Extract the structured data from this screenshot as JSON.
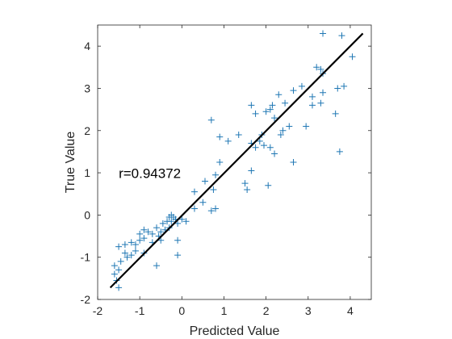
{
  "chart_data": {
    "type": "scatter",
    "xlabel": "Predicted Value",
    "ylabel": "True Value",
    "xlim": [
      -2,
      4.5
    ],
    "ylim": [
      -2,
      4.5
    ],
    "xticks": [
      -2,
      -1,
      0,
      1,
      2,
      3,
      4
    ],
    "yticks": [
      -2,
      -1,
      0,
      1,
      2,
      3,
      4
    ],
    "grid": false,
    "annotation": {
      "text": "r=0.94372",
      "x": -1.5,
      "y": 0.88
    },
    "marker_color": "#1f77b4",
    "line_color": "#000000",
    "fit_line": {
      "x": [
        -1.7,
        4.3
      ],
      "y": [
        -1.72,
        4.3
      ]
    },
    "points": [
      [
        -1.5,
        -1.72
      ],
      [
        -1.55,
        -1.55
      ],
      [
        -1.6,
        -1.4
      ],
      [
        -1.5,
        -1.3
      ],
      [
        -1.6,
        -1.2
      ],
      [
        -1.45,
        -1.1
      ],
      [
        -1.3,
        -1.0
      ],
      [
        -1.2,
        -0.95
      ],
      [
        -1.35,
        -0.9
      ],
      [
        -1.1,
        -0.85
      ],
      [
        -1.5,
        -0.75
      ],
      [
        -1.35,
        -0.7
      ],
      [
        -1.2,
        -0.65
      ],
      [
        -1.1,
        -0.7
      ],
      [
        -1.0,
        -0.6
      ],
      [
        -0.9,
        -0.55
      ],
      [
        -1.0,
        -0.45
      ],
      [
        -0.8,
        -0.4
      ],
      [
        -0.9,
        -0.35
      ],
      [
        -0.7,
        -0.45
      ],
      [
        -0.6,
        -0.3
      ],
      [
        -0.5,
        -0.4
      ],
      [
        -0.4,
        -0.35
      ],
      [
        -0.45,
        -0.2
      ],
      [
        -0.35,
        -0.15
      ],
      [
        -0.3,
        -0.05
      ],
      [
        -0.25,
        0.0
      ],
      [
        -0.2,
        -0.05
      ],
      [
        -0.15,
        -0.1
      ],
      [
        -0.1,
        -0.2
      ],
      [
        0.0,
        -0.1
      ],
      [
        -0.55,
        -0.5
      ],
      [
        -0.5,
        -0.6
      ],
      [
        -0.7,
        -0.65
      ],
      [
        -0.9,
        -0.9
      ],
      [
        -0.6,
        -1.2
      ],
      [
        -0.1,
        -0.6
      ],
      [
        -0.1,
        -0.95
      ],
      [
        -0.3,
        -0.3
      ],
      [
        -0.25,
        -0.15
      ],
      [
        0.1,
        -0.15
      ],
      [
        0.3,
        0.15
      ],
      [
        0.5,
        0.3
      ],
      [
        0.7,
        0.1
      ],
      [
        0.8,
        0.15
      ],
      [
        0.3,
        0.55
      ],
      [
        0.55,
        0.8
      ],
      [
        0.75,
        0.6
      ],
      [
        0.8,
        0.95
      ],
      [
        0.9,
        1.25
      ],
      [
        0.9,
        1.85
      ],
      [
        1.1,
        1.75
      ],
      [
        0.7,
        2.25
      ],
      [
        1.35,
        1.9
      ],
      [
        1.5,
        0.75
      ],
      [
        1.55,
        0.6
      ],
      [
        1.65,
        1.05
      ],
      [
        1.65,
        1.7
      ],
      [
        1.75,
        1.6
      ],
      [
        1.85,
        1.75
      ],
      [
        1.9,
        1.9
      ],
      [
        1.95,
        1.65
      ],
      [
        2.05,
        0.7
      ],
      [
        2.1,
        1.6
      ],
      [
        2.2,
        1.45
      ],
      [
        2.35,
        1.9
      ],
      [
        2.4,
        2.0
      ],
      [
        2.55,
        2.1
      ],
      [
        2.2,
        2.3
      ],
      [
        2.1,
        2.5
      ],
      [
        2.15,
        2.6
      ],
      [
        2.0,
        2.45
      ],
      [
        1.65,
        2.6
      ],
      [
        1.75,
        2.4
      ],
      [
        2.3,
        2.85
      ],
      [
        2.45,
        2.65
      ],
      [
        2.65,
        2.95
      ],
      [
        2.85,
        3.05
      ],
      [
        2.95,
        2.1
      ],
      [
        2.65,
        1.25
      ],
      [
        3.1,
        2.6
      ],
      [
        3.1,
        2.8
      ],
      [
        3.3,
        2.65
      ],
      [
        3.35,
        2.9
      ],
      [
        3.2,
        3.5
      ],
      [
        3.35,
        3.35
      ],
      [
        3.3,
        3.45
      ],
      [
        3.7,
        3.0
      ],
      [
        3.85,
        3.05
      ],
      [
        3.65,
        2.4
      ],
      [
        3.75,
        1.5
      ],
      [
        3.35,
        4.3
      ],
      [
        3.8,
        4.25
      ],
      [
        4.05,
        3.75
      ]
    ]
  }
}
